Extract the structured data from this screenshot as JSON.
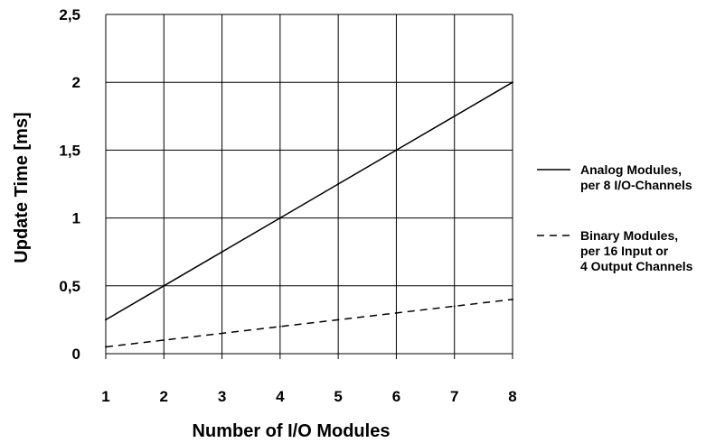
{
  "chart_data": {
    "type": "line",
    "xlabel": "Number of I/O Modules",
    "ylabel": "Update Time [ms]",
    "x": [
      1,
      2,
      3,
      4,
      5,
      6,
      7,
      8
    ],
    "x_tick_labels": [
      "1",
      "2",
      "3",
      "4",
      "5",
      "6",
      "7",
      "8"
    ],
    "xlim": [
      1,
      8
    ],
    "ylim": [
      0,
      2.5
    ],
    "y_ticks": [
      0,
      0.5,
      1,
      1.5,
      2,
      2.5
    ],
    "y_tick_labels": [
      "0",
      "0,5",
      "1",
      "1,5",
      "2",
      "2,5"
    ],
    "grid": true,
    "legend_position": "right",
    "series": [
      {
        "name": "Analog Modules, per 8 I/O-Channels",
        "legend_lines": [
          "Analog Modules,",
          "per 8 I/O-Channels"
        ],
        "line_style": "solid",
        "color": "#000000",
        "values": [
          0.25,
          0.5,
          0.75,
          1.0,
          1.25,
          1.5,
          1.75,
          2.0
        ]
      },
      {
        "name": "Binary Modules, per 16 Input or 4 Output Channels",
        "legend_lines": [
          "Binary Modules,",
          "per 16 Input or",
          "4 Output Channels"
        ],
        "line_style": "dashed",
        "color": "#000000",
        "values": [
          0.05,
          0.1,
          0.15,
          0.2,
          0.25,
          0.3,
          0.35,
          0.4
        ]
      }
    ]
  }
}
